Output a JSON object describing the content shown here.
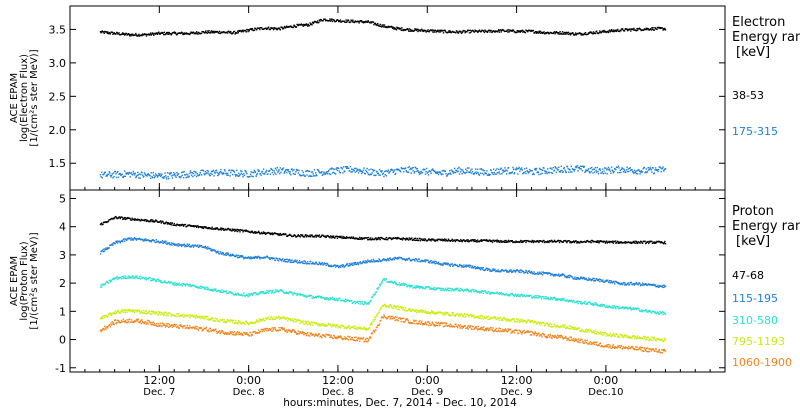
{
  "chart_data": [
    {
      "type": "scatter",
      "panel": "electron",
      "ylabel_lines": [
        "ACE EPAM",
        "log(Electron Flux)",
        "[1/(cm²s ster MeV)]"
      ],
      "yticks": [
        "1.5",
        "2.0",
        "2.5",
        "3.0",
        "3.5"
      ],
      "ylim": [
        1.1,
        3.85
      ],
      "legend_title_lines": [
        "Electron",
        "Energy ran",
        "[keV]"
      ],
      "series": [
        {
          "name": "38-53",
          "color": "#000000",
          "x": [
            0,
            2,
            4,
            6,
            8,
            10,
            12,
            14,
            16,
            18,
            20,
            22,
            24,
            26,
            28,
            30,
            32,
            34,
            36,
            38,
            40,
            42,
            44,
            46,
            48,
            50,
            52,
            54,
            56,
            58,
            60,
            62,
            64,
            66,
            68,
            70,
            72,
            74,
            76
          ],
          "values": [
            3.47,
            3.45,
            3.43,
            3.43,
            3.45,
            3.45,
            3.45,
            3.47,
            3.47,
            3.46,
            3.5,
            3.53,
            3.52,
            3.56,
            3.58,
            3.66,
            3.64,
            3.63,
            3.62,
            3.56,
            3.52,
            3.5,
            3.49,
            3.48,
            3.47,
            3.48,
            3.48,
            3.49,
            3.48,
            3.48,
            3.46,
            3.46,
            3.44,
            3.46,
            3.48,
            3.5,
            3.51,
            3.52,
            3.52
          ],
          "noise": 0.02
        },
        {
          "name": "175-315",
          "color": "#1e7fd8",
          "x": [
            0,
            2,
            4,
            6,
            8,
            10,
            12,
            14,
            16,
            18,
            20,
            22,
            24,
            26,
            28,
            30,
            32,
            34,
            36,
            38,
            40,
            42,
            44,
            46,
            48,
            50,
            52,
            54,
            56,
            58,
            60,
            62,
            64,
            66,
            68,
            70,
            72,
            74,
            76
          ],
          "values": [
            1.33,
            1.34,
            1.35,
            1.33,
            1.32,
            1.33,
            1.35,
            1.36,
            1.37,
            1.36,
            1.35,
            1.38,
            1.4,
            1.38,
            1.36,
            1.38,
            1.4,
            1.42,
            1.38,
            1.36,
            1.4,
            1.41,
            1.38,
            1.36,
            1.4,
            1.39,
            1.37,
            1.4,
            1.4,
            1.38,
            1.4,
            1.42,
            1.43,
            1.4,
            1.4,
            1.42,
            1.4,
            1.4,
            1.42
          ],
          "noise": 0.05
        }
      ]
    },
    {
      "type": "scatter",
      "panel": "proton",
      "ylabel_lines": [
        "ACE EPAM",
        "log(Proton Flux)",
        "[1/(cm²s ster MeV)]"
      ],
      "yticks": [
        "-1",
        "0",
        "1",
        "2",
        "3",
        "4",
        "5"
      ],
      "ylim": [
        -1.15,
        5.3
      ],
      "legend_title_lines": [
        "Proton",
        "Energy ran",
        "[keV]"
      ],
      "series": [
        {
          "name": "47-68",
          "color": "#000000",
          "x": [
            0,
            2,
            4,
            6,
            8,
            10,
            12,
            14,
            16,
            18,
            20,
            22,
            24,
            26,
            28,
            30,
            32,
            34,
            36,
            38,
            40,
            42,
            44,
            46,
            48,
            50,
            52,
            54,
            56,
            58,
            60,
            62,
            64,
            66,
            68,
            70,
            72,
            74,
            76
          ],
          "values": [
            4.1,
            4.35,
            4.3,
            4.25,
            4.2,
            4.1,
            4.05,
            4.0,
            3.95,
            3.9,
            3.85,
            3.8,
            3.75,
            3.7,
            3.7,
            3.68,
            3.65,
            3.62,
            3.6,
            3.6,
            3.6,
            3.58,
            3.55,
            3.55,
            3.53,
            3.52,
            3.52,
            3.5,
            3.5,
            3.5,
            3.5,
            3.5,
            3.48,
            3.5,
            3.48,
            3.47,
            3.47,
            3.47,
            3.46
          ],
          "noise": 0.04
        },
        {
          "name": "115-195",
          "color": "#1e7fd8",
          "x": [
            0,
            2,
            4,
            6,
            8,
            10,
            12,
            14,
            16,
            18,
            20,
            22,
            24,
            26,
            28,
            30,
            32,
            34,
            36,
            38,
            40,
            42,
            44,
            46,
            48,
            50,
            52,
            54,
            56,
            58,
            60,
            62,
            64,
            66,
            68,
            70,
            72,
            74,
            76
          ],
          "values": [
            3.1,
            3.45,
            3.6,
            3.55,
            3.5,
            3.4,
            3.35,
            3.3,
            3.1,
            3.0,
            2.9,
            2.95,
            2.85,
            2.8,
            2.75,
            2.7,
            2.6,
            2.7,
            2.8,
            2.85,
            2.9,
            2.85,
            2.8,
            2.7,
            2.65,
            2.6,
            2.5,
            2.45,
            2.45,
            2.4,
            2.35,
            2.3,
            2.2,
            2.15,
            2.1,
            2.0,
            2.0,
            1.95,
            1.9
          ],
          "noise": 0.05
        },
        {
          "name": "310-580",
          "color": "#2de0d2",
          "x": [
            0,
            2,
            4,
            6,
            8,
            10,
            12,
            14,
            16,
            18,
            20,
            22,
            24,
            26,
            28,
            30,
            32,
            34,
            36,
            38,
            40,
            42,
            44,
            46,
            48,
            50,
            52,
            54,
            56,
            58,
            60,
            62,
            64,
            66,
            68,
            70,
            72,
            74,
            76
          ],
          "values": [
            1.9,
            2.2,
            2.25,
            2.2,
            2.1,
            2.0,
            1.95,
            1.85,
            1.75,
            1.65,
            1.6,
            1.7,
            1.75,
            1.65,
            1.55,
            1.5,
            1.45,
            1.35,
            1.3,
            2.15,
            2.0,
            1.9,
            1.85,
            1.8,
            1.8,
            1.75,
            1.7,
            1.65,
            1.6,
            1.55,
            1.5,
            1.45,
            1.35,
            1.3,
            1.2,
            1.15,
            1.1,
            1.0,
            0.95
          ],
          "noise": 0.05
        },
        {
          "name": "795-1193",
          "color": "#c8ee10",
          "x": [
            0,
            2,
            4,
            6,
            8,
            10,
            12,
            14,
            16,
            18,
            20,
            22,
            24,
            26,
            28,
            30,
            32,
            34,
            36,
            38,
            40,
            42,
            44,
            46,
            48,
            50,
            52,
            54,
            56,
            58,
            60,
            62,
            64,
            66,
            68,
            70,
            72,
            74,
            76
          ],
          "values": [
            0.75,
            1.0,
            1.05,
            1.0,
            0.95,
            0.9,
            0.85,
            0.8,
            0.7,
            0.65,
            0.6,
            0.75,
            0.8,
            0.7,
            0.6,
            0.55,
            0.5,
            0.45,
            0.4,
            1.25,
            1.15,
            1.05,
            1.0,
            0.95,
            0.9,
            0.85,
            0.8,
            0.75,
            0.7,
            0.65,
            0.55,
            0.5,
            0.4,
            0.3,
            0.2,
            0.15,
            0.1,
            0.05,
            0.0
          ],
          "noise": 0.06
        },
        {
          "name": "1060-1900",
          "color": "#f0841c",
          "x": [
            0,
            2,
            4,
            6,
            8,
            10,
            12,
            14,
            16,
            18,
            20,
            22,
            24,
            26,
            28,
            30,
            32,
            34,
            36,
            38,
            40,
            42,
            44,
            46,
            48,
            50,
            52,
            54,
            56,
            58,
            60,
            62,
            64,
            66,
            68,
            70,
            72,
            74,
            76
          ],
          "values": [
            0.35,
            0.65,
            0.7,
            0.65,
            0.55,
            0.5,
            0.45,
            0.4,
            0.3,
            0.25,
            0.2,
            0.35,
            0.4,
            0.3,
            0.2,
            0.15,
            0.1,
            0.05,
            0.0,
            0.85,
            0.75,
            0.65,
            0.6,
            0.55,
            0.5,
            0.45,
            0.4,
            0.35,
            0.3,
            0.25,
            0.15,
            0.1,
            0.0,
            -0.1,
            -0.2,
            -0.25,
            -0.3,
            -0.35,
            -0.4
          ],
          "noise": 0.07
        }
      ]
    }
  ],
  "x_axis": {
    "xlim": [
      -4,
      84
    ],
    "ticks": [
      {
        "x": 8,
        "top": "12:00",
        "bottom": "Dec. 7"
      },
      {
        "x": 20,
        "top": "0:00",
        "bottom": "Dec. 8"
      },
      {
        "x": 32,
        "top": "12:00",
        "bottom": "Dec. 8"
      },
      {
        "x": 44,
        "top": "0:00",
        "bottom": "Dec. 9"
      },
      {
        "x": 56,
        "top": "12:00",
        "bottom": "Dec. 9"
      },
      {
        "x": 68,
        "top": "0:00",
        "bottom": "Dec.10"
      }
    ],
    "label": "hours:minutes, Dec.  7, 2014 - Dec. 10, 2014"
  }
}
